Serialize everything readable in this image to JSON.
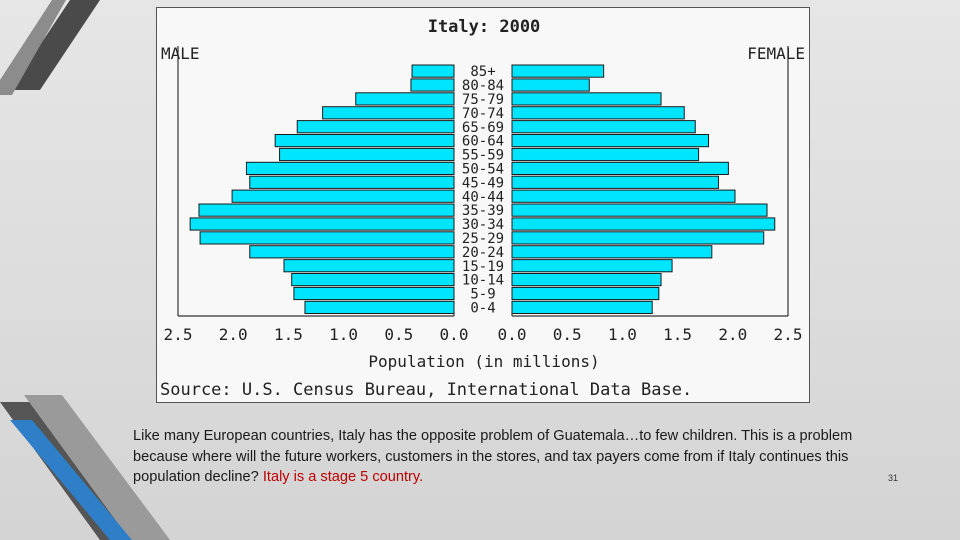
{
  "slide": {
    "caption": "Like many European countries, Italy has the opposite problem of Guatemala…to few children. This is a problem because where will the future workers, customers in the stores, and tax payers come from if Italy continues this population decline?",
    "caption_highlight": "Italy is a stage 5 country.",
    "highlight_color": "#c00000",
    "page_number": "31"
  },
  "colors": {
    "bar_fill": "#00e5ff",
    "bar_stroke": "#1a1a1a",
    "axis": "#333333"
  },
  "chart_data": {
    "type": "bar",
    "orientation": "population-pyramid",
    "title": "Italy: 2000",
    "left_label": "MALE",
    "right_label": "FEMALE",
    "xlabel": "Population (in millions)",
    "source": "Source: U.S. Census Bureau, International Data Base.",
    "xlim": [
      0,
      2.5
    ],
    "left_ticks": [
      "2.5",
      "2.0",
      "1.5",
      "1.0",
      "0.5",
      "0.0"
    ],
    "right_ticks": [
      "0.0",
      "0.5",
      "1.0",
      "1.5",
      "2.0",
      "2.5"
    ],
    "categories": [
      "85+",
      "80-84",
      "75-79",
      "70-74",
      "65-69",
      "60-64",
      "55-59",
      "50-54",
      "45-49",
      "40-44",
      "35-39",
      "30-34",
      "25-29",
      "20-24",
      "15-19",
      "10-14",
      "5-9",
      "0-4"
    ],
    "series": [
      {
        "name": "MALE",
        "values": [
          0.38,
          0.39,
          0.89,
          1.19,
          1.42,
          1.62,
          1.58,
          1.88,
          1.85,
          2.01,
          2.31,
          2.39,
          2.3,
          1.85,
          1.54,
          1.47,
          1.45,
          1.35
        ]
      },
      {
        "name": "FEMALE",
        "values": [
          0.83,
          0.7,
          1.35,
          1.56,
          1.66,
          1.78,
          1.69,
          1.96,
          1.87,
          2.02,
          2.31,
          2.38,
          2.28,
          1.81,
          1.45,
          1.35,
          1.33,
          1.27
        ]
      }
    ]
  }
}
